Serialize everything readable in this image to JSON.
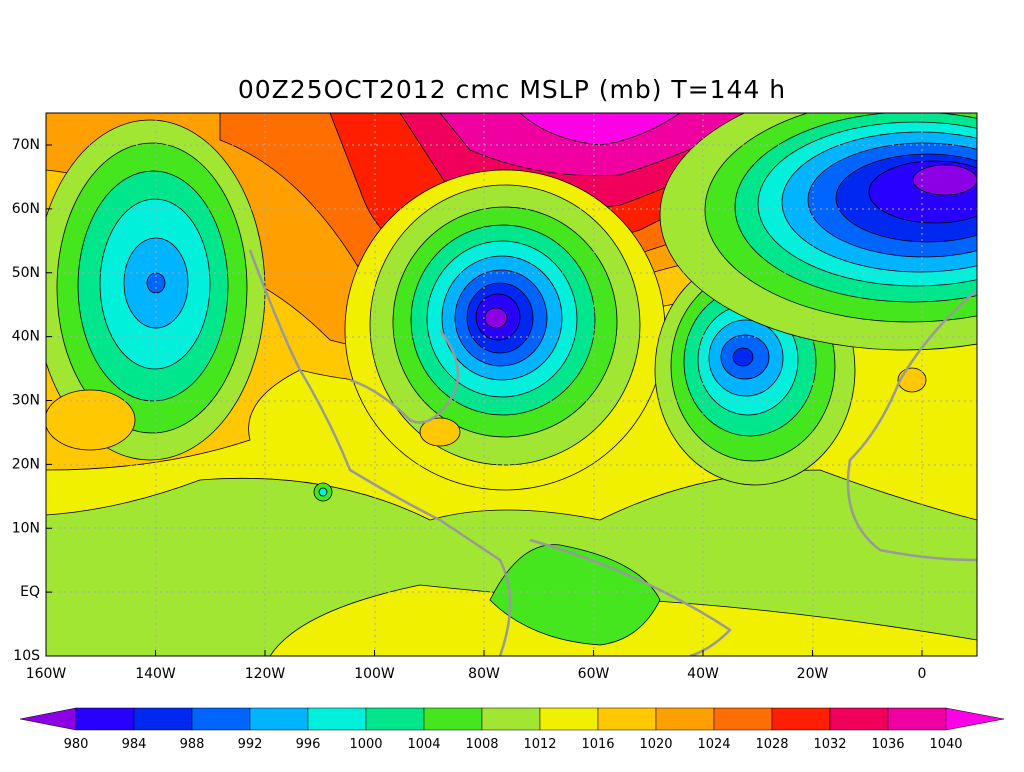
{
  "title": "00Z25OCT2012 cmc MSLP (mb) T=144 h",
  "map": {
    "lat_labels": [
      "70N",
      "60N",
      "50N",
      "40N",
      "30N",
      "20N",
      "10N",
      "EQ",
      "10S"
    ],
    "lon_labels": [
      "160W",
      "140W",
      "120W",
      "100W",
      "80W",
      "60W",
      "40W",
      "20W",
      "0"
    ]
  },
  "colorbar": {
    "levels": [
      980,
      984,
      988,
      992,
      996,
      1000,
      1004,
      1008,
      1012,
      1016,
      1020,
      1024,
      1028,
      1032,
      1036,
      1040
    ],
    "colors": [
      "#8c00e6",
      "#2800ff",
      "#0028f0",
      "#0064ff",
      "#00b4ff",
      "#00f0dc",
      "#00e68c",
      "#46e61e",
      "#a0e632",
      "#f0f000",
      "#ffc800",
      "#ffa000",
      "#ff6e00",
      "#ff1e00",
      "#f0005a",
      "#f000a0",
      "#ff00e6"
    ]
  }
}
